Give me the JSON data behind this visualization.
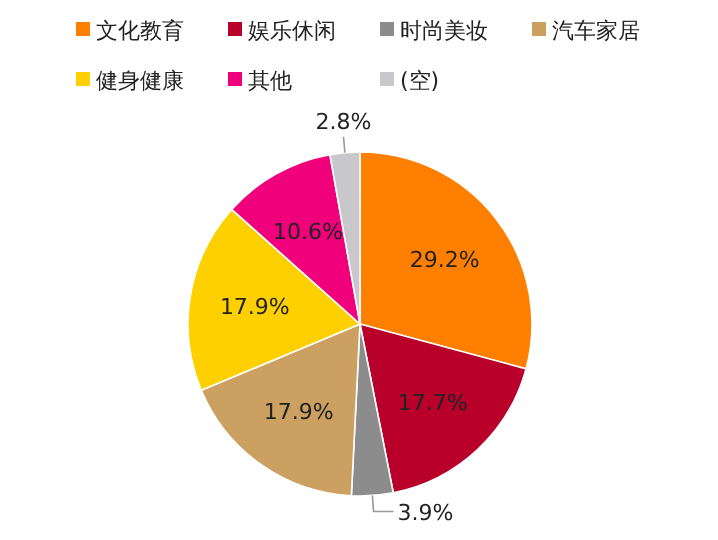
{
  "chart_data": {
    "type": "pie",
    "categories": [
      "文化教育",
      "娱乐休闲",
      "时尚美妆",
      "汽车家居",
      "健身健康",
      "其他",
      "(空)"
    ],
    "values": [
      29.2,
      17.7,
      3.9,
      17.9,
      17.9,
      10.6,
      2.8
    ],
    "colors": [
      "#ff8000",
      "#b8002a",
      "#8c8c8c",
      "#cca060",
      "#ffd000",
      "#f0007a",
      "#c8c8cc"
    ],
    "value_labels": [
      "29.2%",
      "17.7%",
      "3.9%",
      "17.9%",
      "17.9%",
      "10.6%",
      "2.8%"
    ],
    "legend": "top"
  }
}
